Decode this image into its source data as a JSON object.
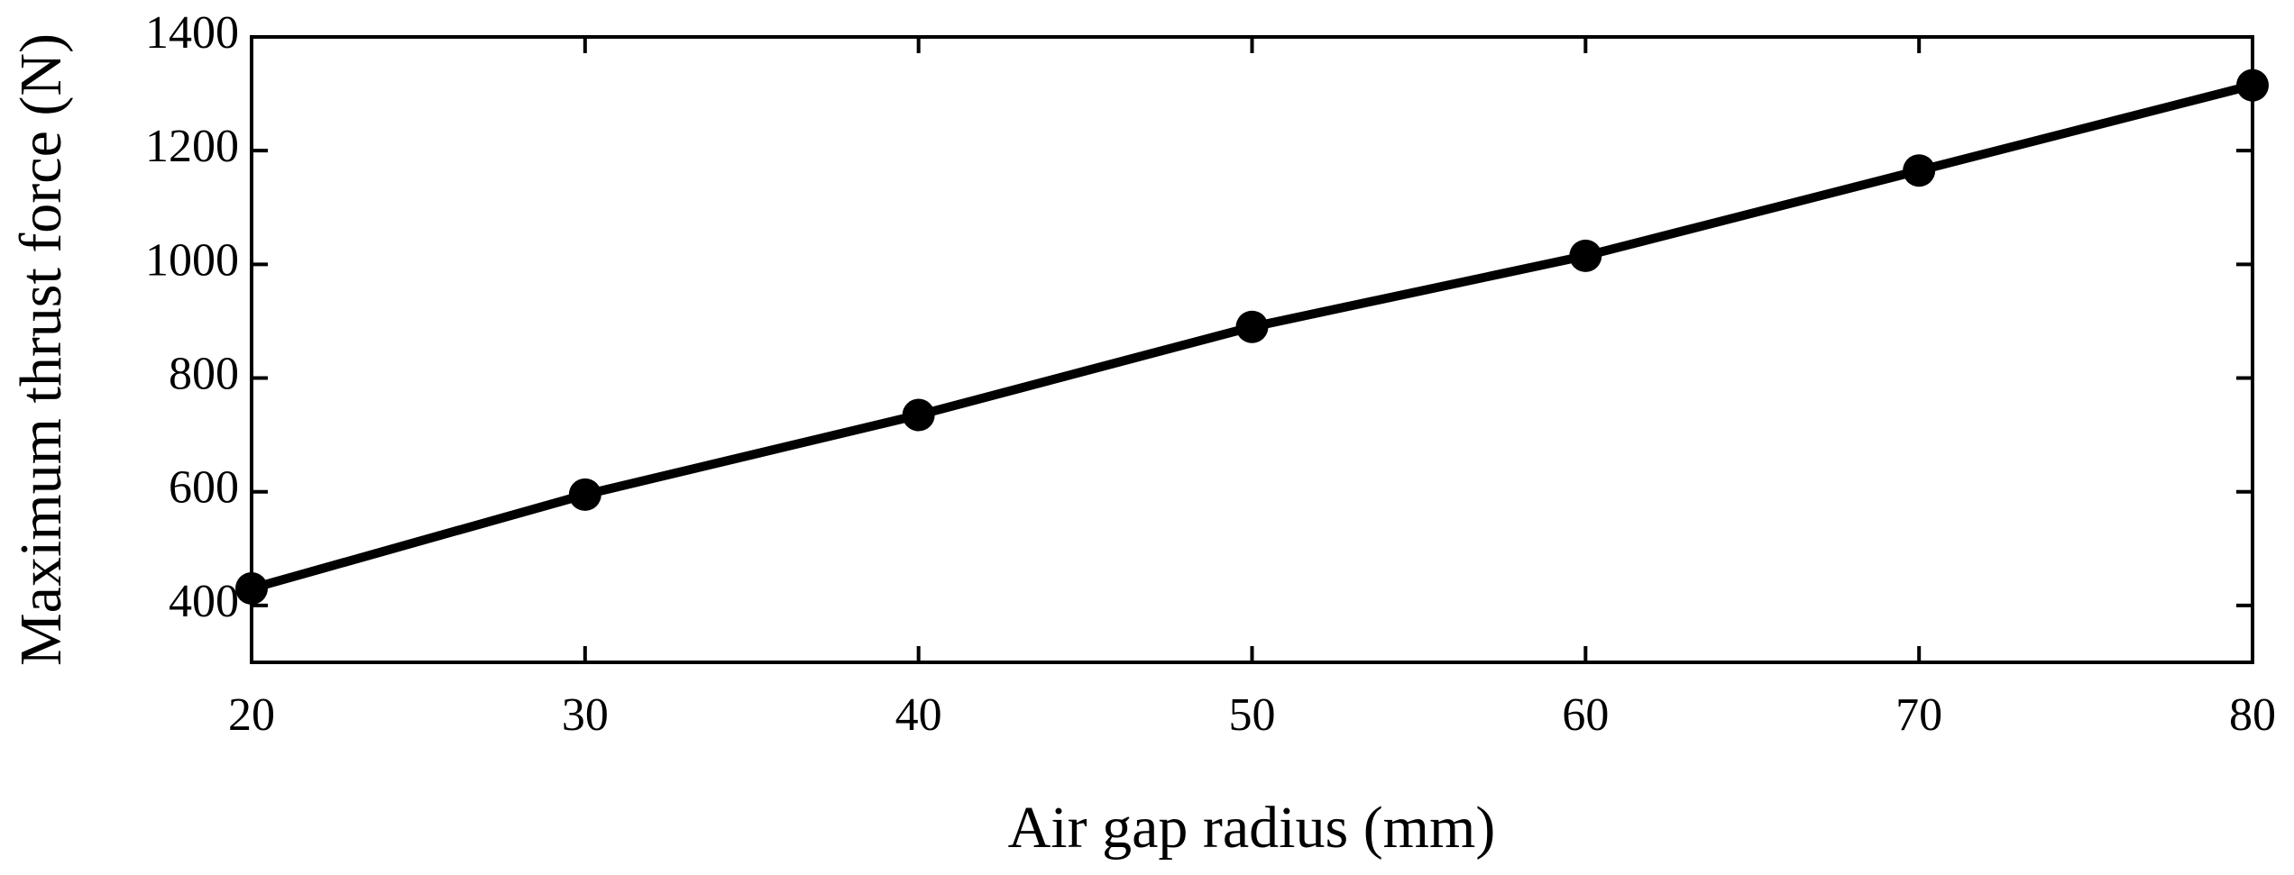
{
  "chart_data": {
    "type": "line",
    "x_label": "Air gap radius (mm)",
    "y_label": "Maximum thrust force (N)",
    "x": [
      20,
      30,
      40,
      50,
      60,
      70,
      80
    ],
    "series": [
      {
        "color": "#000000",
        "values": [
          430,
          595,
          735,
          890,
          1015,
          1165,
          1315
        ]
      }
    ],
    "xlim": [
      20,
      80
    ],
    "xticks": [
      20,
      30,
      40,
      50,
      60,
      70,
      80
    ],
    "ylim": [
      300,
      1400
    ],
    "yticks": [
      400,
      600,
      800,
      1000,
      1200,
      1400
    ],
    "grid": false,
    "markers": true
  }
}
